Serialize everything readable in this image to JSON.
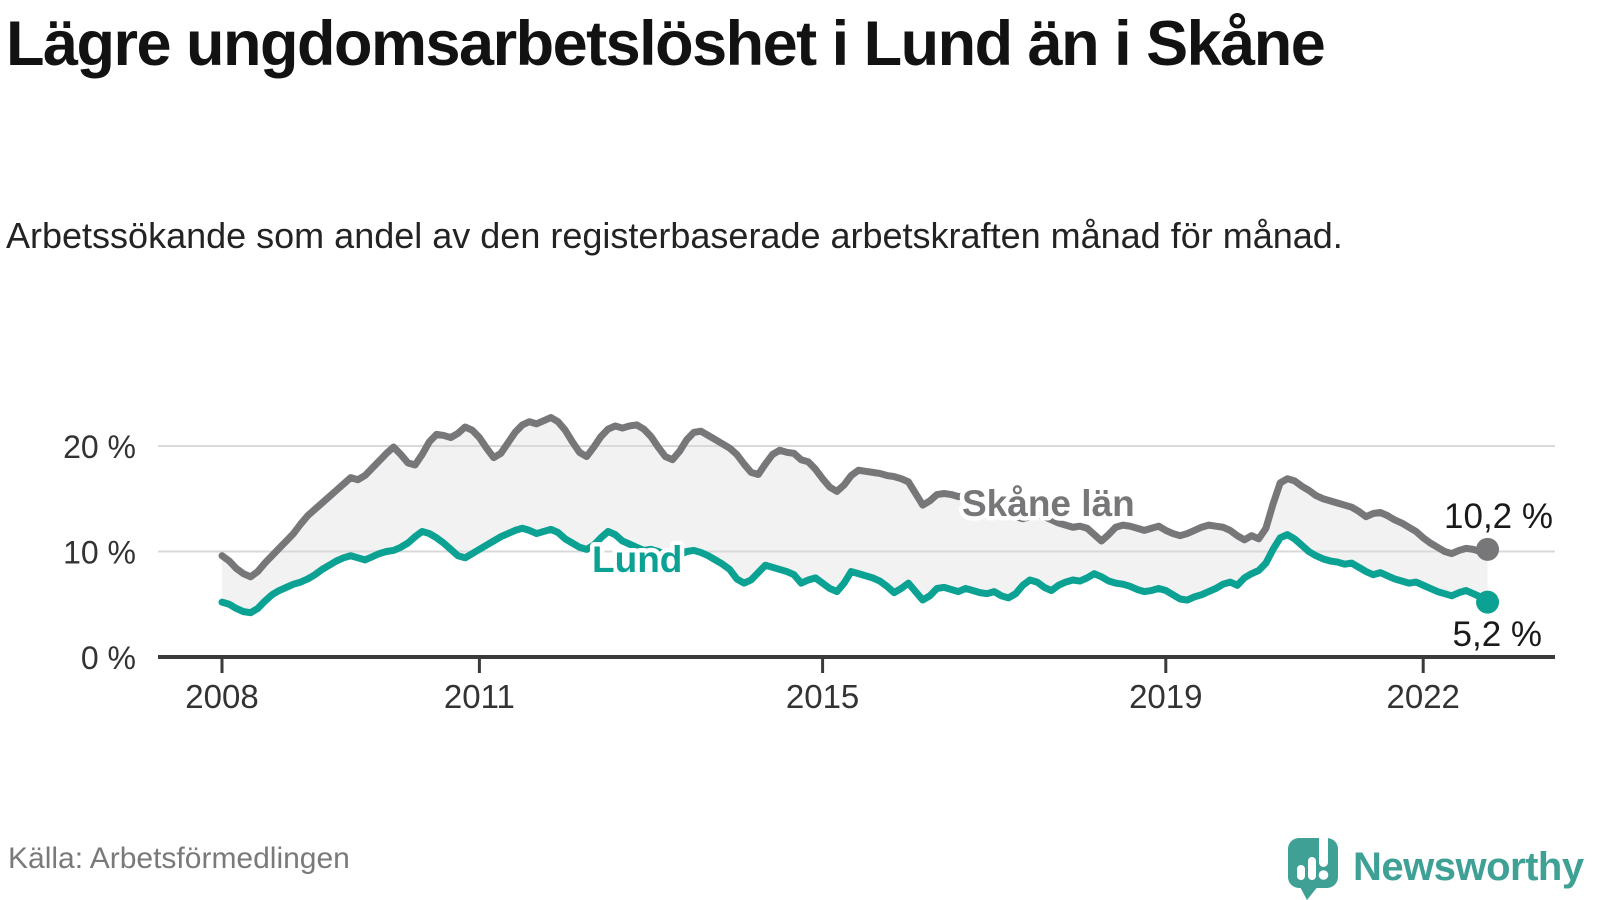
{
  "header": {
    "title": "Lägre ungdomsarbetslöshet i Lund än i Skåne",
    "subtitle": "Arbetssökande som andel av den registerbaserade arbetskraften månad för månad."
  },
  "chart_data": {
    "type": "line",
    "unit": "%",
    "frequency": "monthly",
    "start_year": 2008,
    "start_month": 1,
    "end_year": 2022,
    "end_month": 10,
    "x_ticks": [
      2008,
      2011,
      2015,
      2019,
      2022
    ],
    "y_ticks": [
      {
        "value": 0,
        "label": "0 %"
      },
      {
        "value": 10,
        "label": "10 %"
      },
      {
        "value": 20,
        "label": "20 %"
      }
    ],
    "ylim": [
      0,
      24
    ],
    "grid": "horizontal",
    "band_fill": "#f2f2f2",
    "series": [
      {
        "name": "Skåne län",
        "color": "#77777a",
        "end_label": "10,2 %",
        "end_value": 10.2,
        "values": [
          9.6,
          9.1,
          8.4,
          7.9,
          7.6,
          8.1,
          8.9,
          9.6,
          10.3,
          11.0,
          11.7,
          12.6,
          13.4,
          14.0,
          14.6,
          15.2,
          15.8,
          16.4,
          17.0,
          16.8,
          17.2,
          17.9,
          18.6,
          19.3,
          19.9,
          19.2,
          18.4,
          18.2,
          19.2,
          20.4,
          21.1,
          21.0,
          20.8,
          21.2,
          21.8,
          21.5,
          20.8,
          19.8,
          18.9,
          19.3,
          20.3,
          21.3,
          22.0,
          22.3,
          22.1,
          22.4,
          22.7,
          22.3,
          21.5,
          20.4,
          19.4,
          19.0,
          19.9,
          20.9,
          21.6,
          21.9,
          21.7,
          21.9,
          22.0,
          21.6,
          20.9,
          19.9,
          19.0,
          18.7,
          19.5,
          20.6,
          21.3,
          21.4,
          21.0,
          20.6,
          20.2,
          19.8,
          19.2,
          18.3,
          17.5,
          17.3,
          18.3,
          19.2,
          19.6,
          19.4,
          19.3,
          18.7,
          18.5,
          17.8,
          16.9,
          16.1,
          15.7,
          16.3,
          17.2,
          17.7,
          17.6,
          17.5,
          17.4,
          17.2,
          17.1,
          16.9,
          16.6,
          15.5,
          14.4,
          14.8,
          15.4,
          15.5,
          15.4,
          15.2,
          15.3,
          15.1,
          14.9,
          14.7,
          14.4,
          14.0,
          13.6,
          13.3,
          13.1,
          13.3,
          13.5,
          13.3,
          13.0,
          12.7,
          12.5,
          12.3,
          12.4,
          12.2,
          11.6,
          11.0,
          11.6,
          12.3,
          12.5,
          12.4,
          12.2,
          12.0,
          12.2,
          12.4,
          12.0,
          11.7,
          11.5,
          11.7,
          12.0,
          12.3,
          12.5,
          12.4,
          12.3,
          12.0,
          11.5,
          11.1,
          11.5,
          11.2,
          12.2,
          14.5,
          16.5,
          16.9,
          16.7,
          16.2,
          15.8,
          15.3,
          15.0,
          14.8,
          14.6,
          14.4,
          14.2,
          13.8,
          13.3,
          13.6,
          13.7,
          13.4,
          13.0,
          12.7,
          12.3,
          11.9,
          11.3,
          10.8,
          10.4,
          10.0,
          9.8,
          10.1,
          10.3,
          10.2,
          10.0,
          10.2
        ]
      },
      {
        "name": "Lund",
        "color": "#0ba294",
        "end_label": "5,2 %",
        "end_value": 5.2,
        "values": [
          5.2,
          5.0,
          4.6,
          4.3,
          4.2,
          4.6,
          5.3,
          5.9,
          6.3,
          6.6,
          6.9,
          7.1,
          7.4,
          7.8,
          8.3,
          8.7,
          9.1,
          9.4,
          9.6,
          9.4,
          9.2,
          9.5,
          9.8,
          10.0,
          10.1,
          10.4,
          10.8,
          11.4,
          11.9,
          11.7,
          11.3,
          10.8,
          10.2,
          9.6,
          9.4,
          9.8,
          10.2,
          10.6,
          11.0,
          11.4,
          11.7,
          12.0,
          12.2,
          12.0,
          11.7,
          11.9,
          12.1,
          11.8,
          11.2,
          10.8,
          10.4,
          10.2,
          10.6,
          11.3,
          11.9,
          11.6,
          11.0,
          10.7,
          10.4,
          10.1,
          10.2,
          10.0,
          9.7,
          9.5,
          9.7,
          10.0,
          10.1,
          9.9,
          9.6,
          9.2,
          8.8,
          8.3,
          7.4,
          7.0,
          7.3,
          8.0,
          8.7,
          8.5,
          8.3,
          8.1,
          7.8,
          7.0,
          7.3,
          7.5,
          7.0,
          6.5,
          6.2,
          7.0,
          8.1,
          7.9,
          7.7,
          7.5,
          7.2,
          6.7,
          6.1,
          6.5,
          7.0,
          6.2,
          5.4,
          5.8,
          6.5,
          6.6,
          6.4,
          6.2,
          6.5,
          6.3,
          6.1,
          6.0,
          6.2,
          5.8,
          5.6,
          6.0,
          6.8,
          7.3,
          7.1,
          6.6,
          6.3,
          6.8,
          7.1,
          7.3,
          7.2,
          7.5,
          7.9,
          7.6,
          7.2,
          7.0,
          6.9,
          6.7,
          6.4,
          6.2,
          6.3,
          6.5,
          6.3,
          5.9,
          5.5,
          5.4,
          5.7,
          5.9,
          6.2,
          6.5,
          6.9,
          7.1,
          6.8,
          7.5,
          7.9,
          8.2,
          8.9,
          10.2,
          11.3,
          11.6,
          11.2,
          10.6,
          10.0,
          9.6,
          9.3,
          9.1,
          9.0,
          8.8,
          8.9,
          8.5,
          8.1,
          7.8,
          8.0,
          7.7,
          7.4,
          7.2,
          7.0,
          7.1,
          6.8,
          6.5,
          6.2,
          6.0,
          5.8,
          6.1,
          6.3,
          6.0,
          5.7,
          5.2
        ]
      }
    ]
  },
  "footer": {
    "source": "Källa: Arbetsförmedlingen",
    "brand": "Newsworthy"
  },
  "colors": {
    "skane_line": "#77777a",
    "lund_line": "#0ba294",
    "band_fill": "#f2f2f2",
    "gridline": "#d9d9d9",
    "axis": "#3a3a3a",
    "logo_teal": "#3fa096"
  }
}
